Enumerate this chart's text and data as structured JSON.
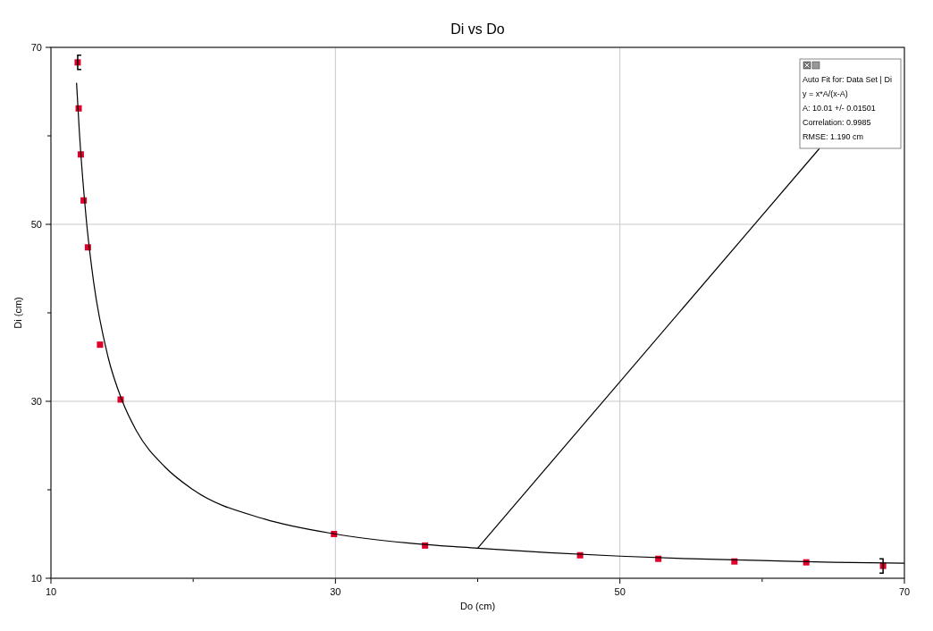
{
  "chart_data": {
    "type": "scatter",
    "title": "Di vs Do",
    "xlabel": "Do (cm)",
    "ylabel": "Di (cm)",
    "xlim": [
      10,
      70
    ],
    "ylim": [
      10,
      70
    ],
    "xticks": [
      10,
      {
        "value": 20,
        "label": null
      },
      30,
      {
        "value": 40,
        "label": null
      },
      50,
      {
        "value": 60,
        "label": null
      },
      70
    ],
    "yticks": [
      10,
      {
        "value": 20,
        "label": null
      },
      30,
      {
        "value": 40,
        "label": null
      },
      50,
      {
        "value": 60,
        "label": null
      },
      70
    ],
    "grid": true,
    "marker": "square",
    "series": [
      {
        "color": "#e0002a",
        "x": [
          11.88,
          11.95,
          12.1,
          12.3,
          12.6,
          13.45,
          14.9,
          29.9,
          36.3,
          47.2,
          52.7,
          58.05,
          63.1,
          68.5
        ],
        "values": [
          68.3,
          63.1,
          57.9,
          52.7,
          47.4,
          36.4,
          30.2,
          15.0,
          13.7,
          12.6,
          12.2,
          11.9,
          11.8,
          11.4
        ]
      },
      {
        "type": "line",
        "color": "#000000",
        "marker": "none",
        "x": [
          11.8,
          12,
          12.5,
          13,
          14,
          15,
          16,
          18,
          20,
          25,
          30,
          35,
          40,
          45,
          50,
          55,
          60,
          65,
          70
        ],
        "values": [
          66.0,
          60.4,
          50.3,
          43.5,
          35.1,
          30.1,
          26.7,
          22.6,
          20.0,
          16.7,
          15.0,
          14.0,
          13.4,
          12.9,
          12.5,
          12.2,
          12.0,
          11.8,
          11.7
        ]
      }
    ],
    "annotations": [
      {
        "text": "Auto Fit for: Data Set | Di\ny = x*A/(x-A)\nA: 10.01 +/- 0.01501\nCorrelation: 0.9985\nRMSE: 1.190 cm",
        "x": 40,
        "y": 13.4
      }
    ]
  }
}
